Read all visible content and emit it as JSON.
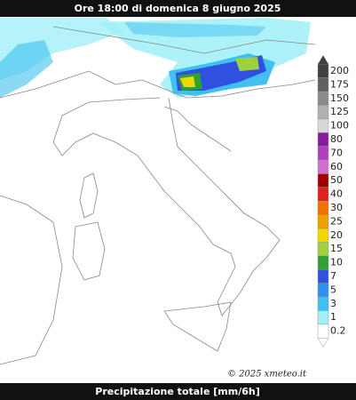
{
  "header": {
    "title": "Ore 18:00 di domenica 8 giugno 2025"
  },
  "footer": {
    "label": "Precipitazione totale [mm/6h]"
  },
  "credit": "© 2025 xmeteo.it",
  "legend": {
    "entries": [
      {
        "label": 200,
        "color": "#404040"
      },
      {
        "label": 175,
        "color": "#606060"
      },
      {
        "label": 150,
        "color": "#8a8a8a"
      },
      {
        "label": 125,
        "color": "#b0b0b0"
      },
      {
        "label": 100,
        "color": "#d8d8d8"
      },
      {
        "label": 80,
        "color": "#8a1aa0"
      },
      {
        "label": 70,
        "color": "#b040c0"
      },
      {
        "label": 60,
        "color": "#d070d0"
      },
      {
        "label": 50,
        "color": "#a00000"
      },
      {
        "label": 40,
        "color": "#e02020"
      },
      {
        "label": 30,
        "color": "#f07000"
      },
      {
        "label": 25,
        "color": "#f0a000"
      },
      {
        "label": 20,
        "color": "#f0d800"
      },
      {
        "label": 15,
        "color": "#a0d040"
      },
      {
        "label": 10,
        "color": "#30a030"
      },
      {
        "label": 7,
        "color": "#3050e0"
      },
      {
        "label": 5,
        "color": "#3090f0"
      },
      {
        "label": 3,
        "color": "#40c0f0"
      },
      {
        "label": 1,
        "color": "#a0f0f8"
      },
      {
        "label": 0.2,
        "color": "#ffffff"
      }
    ]
  }
}
